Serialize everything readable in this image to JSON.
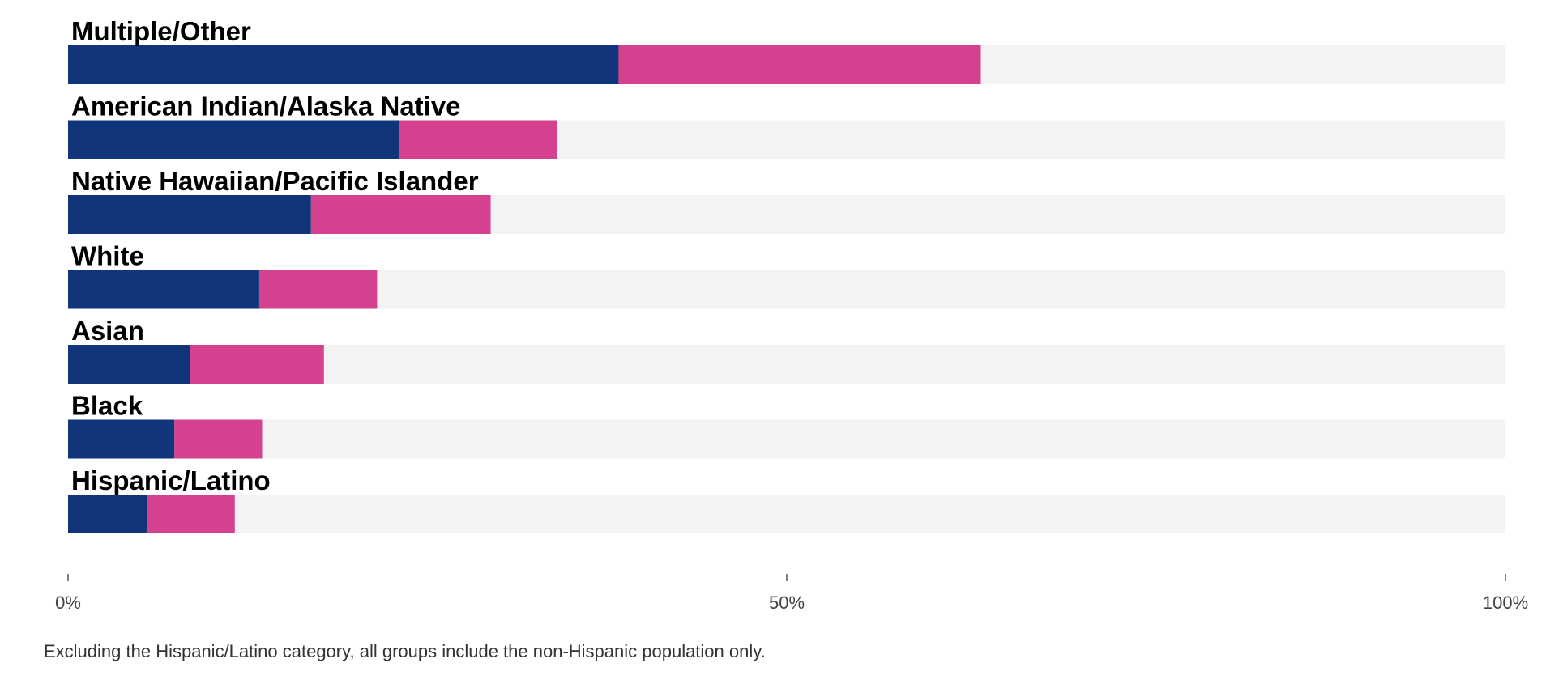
{
  "chart_data": {
    "type": "bar",
    "orientation": "horizontal",
    "stacked": true,
    "categories": [
      "Multiple/Other",
      "American Indian/Alaska Native",
      "Native Hawaiian/Pacific Islander",
      "White",
      "Asian",
      "Black",
      "Hispanic/Latino"
    ],
    "series": [
      {
        "values": [
          38.3,
          23.0,
          16.9,
          13.3,
          8.5,
          7.4,
          5.5
        ]
      },
      {
        "values": [
          25.2,
          11.0,
          12.5,
          8.2,
          9.3,
          6.1,
          6.1
        ]
      }
    ],
    "xlim": [
      0,
      100
    ],
    "x_ticks": [
      "0%",
      "50%",
      "100%"
    ],
    "grid": false,
    "colors": {
      "series1": "#10357a",
      "series2": "#d4418e",
      "track": "#f3f3f3"
    },
    "footnote": "Excluding the Hispanic/Latino category, all groups include the non-Hispanic population only."
  }
}
